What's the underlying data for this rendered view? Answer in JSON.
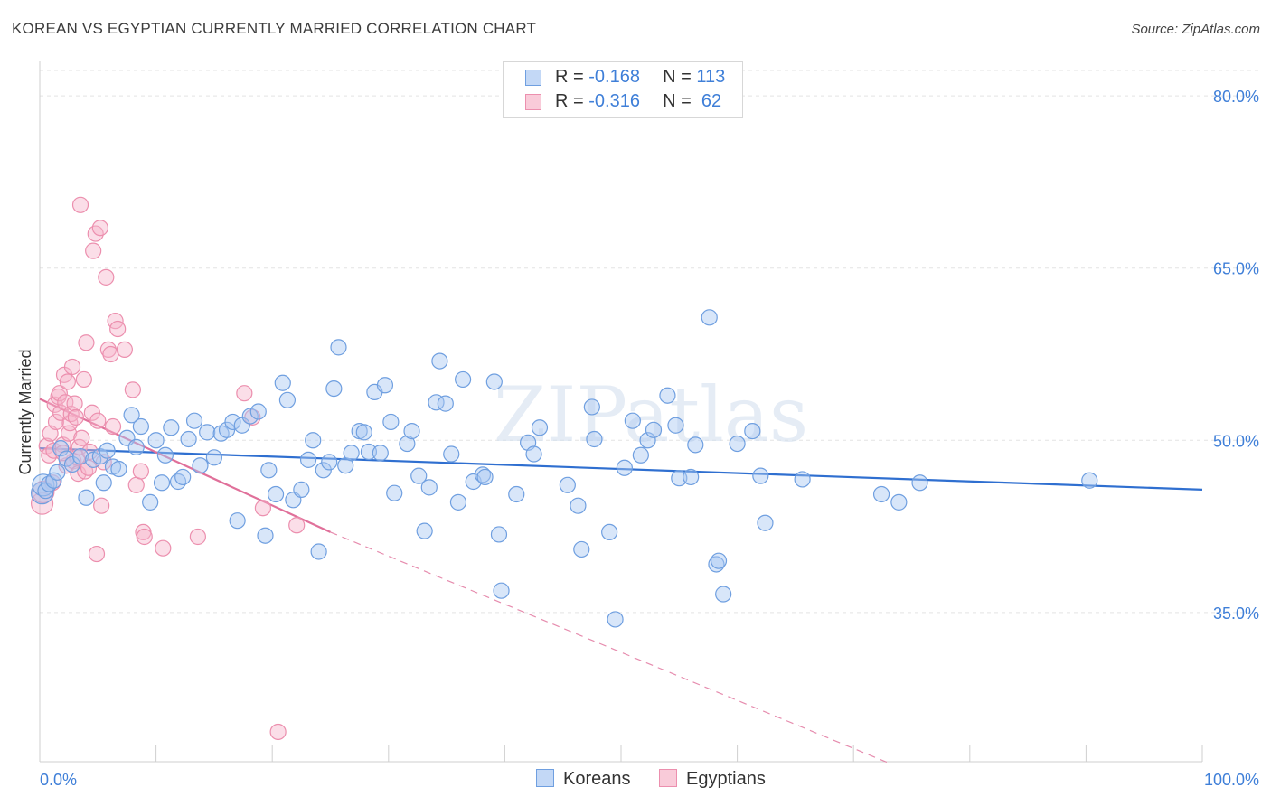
{
  "title": "KOREAN VS EGYPTIAN CURRENTLY MARRIED CORRELATION CHART",
  "source": "Source: ZipAtlas.com",
  "watermark": "ZIPatlas",
  "legend": {
    "rows": [
      {
        "label": "R = ",
        "r": "-0.168",
        "n_label": "N = ",
        "n": "113"
      },
      {
        "label": "R = ",
        "r": "-0.316",
        "n_label": "N = ",
        "n": " 62"
      }
    ]
  },
  "bottom_legend": [
    {
      "name": "Koreans"
    },
    {
      "name": "Egyptians"
    }
  ],
  "colors": {
    "blue_fill": "#a9c7f2",
    "blue_stroke": "#6f9fe0",
    "blue_line": "#2f6fd0",
    "pink_fill": "#f6b6cb",
    "pink_stroke": "#ec8fae",
    "pink_line": "#e0709a",
    "axis_label": "#3f7fd8",
    "grid": "#e3e3e3"
  },
  "chart_data": {
    "type": "scatter",
    "title": "KOREAN VS EGYPTIAN CURRENTLY MARRIED CORRELATION CHART",
    "xlabel": "",
    "ylabel": "Currently Married",
    "xlim": [
      0,
      100
    ],
    "ylim": [
      22,
      83
    ],
    "x_tick_labels": [
      "0.0%",
      "100.0%"
    ],
    "y_ticks": [
      35,
      50,
      65,
      80
    ],
    "y_tick_labels": [
      "35.0%",
      "50.0%",
      "65.0%",
      "80.0%"
    ],
    "grid": true,
    "series": [
      {
        "name": "Koreans",
        "r": -0.168,
        "n": 113,
        "trend": {
          "x": [
            0,
            100
          ],
          "y": [
            49.3,
            45.7
          ]
        },
        "points": [
          [
            0.2,
            45.4
          ],
          [
            0.3,
            46.1
          ],
          [
            0.5,
            45.6
          ],
          [
            0.8,
            46.2
          ],
          [
            1.2,
            46.5
          ],
          [
            1.5,
            47.2
          ],
          [
            1.8,
            49.3
          ],
          [
            2.3,
            48.4
          ],
          [
            2.8,
            47.9
          ],
          [
            3.5,
            48.6
          ],
          [
            4.0,
            45.0
          ],
          [
            4.6,
            48.3
          ],
          [
            5.2,
            48.6
          ],
          [
            5.5,
            46.3
          ],
          [
            5.8,
            49.1
          ],
          [
            6.3,
            47.7
          ],
          [
            6.8,
            47.5
          ],
          [
            7.5,
            50.2
          ],
          [
            7.9,
            52.2
          ],
          [
            8.3,
            49.4
          ],
          [
            8.7,
            51.2
          ],
          [
            9.5,
            44.6
          ],
          [
            10.0,
            50.0
          ],
          [
            10.5,
            46.3
          ],
          [
            10.8,
            48.7
          ],
          [
            11.3,
            51.1
          ],
          [
            11.9,
            46.4
          ],
          [
            12.3,
            46.8
          ],
          [
            12.8,
            50.1
          ],
          [
            13.3,
            51.7
          ],
          [
            13.8,
            47.8
          ],
          [
            14.4,
            50.7
          ],
          [
            15.0,
            48.5
          ],
          [
            15.6,
            50.6
          ],
          [
            16.1,
            50.9
          ],
          [
            16.6,
            51.6
          ],
          [
            17.0,
            43.0
          ],
          [
            17.4,
            51.3
          ],
          [
            18.1,
            52.1
          ],
          [
            18.8,
            52.5
          ],
          [
            19.4,
            41.7
          ],
          [
            19.7,
            47.4
          ],
          [
            20.3,
            45.3
          ],
          [
            20.9,
            55.0
          ],
          [
            21.3,
            53.5
          ],
          [
            21.8,
            44.8
          ],
          [
            22.5,
            45.7
          ],
          [
            23.1,
            48.3
          ],
          [
            23.5,
            50.0
          ],
          [
            24.0,
            40.3
          ],
          [
            24.4,
            47.4
          ],
          [
            24.9,
            48.1
          ],
          [
            25.3,
            54.5
          ],
          [
            25.7,
            58.1
          ],
          [
            26.3,
            47.8
          ],
          [
            26.8,
            48.9
          ],
          [
            27.5,
            50.8
          ],
          [
            27.9,
            50.7
          ],
          [
            28.3,
            49.0
          ],
          [
            28.8,
            54.2
          ],
          [
            29.3,
            48.9
          ],
          [
            29.7,
            54.8
          ],
          [
            30.2,
            51.6
          ],
          [
            30.5,
            45.4
          ],
          [
            31.6,
            49.7
          ],
          [
            32.0,
            50.8
          ],
          [
            32.6,
            46.9
          ],
          [
            33.1,
            42.1
          ],
          [
            33.5,
            45.9
          ],
          [
            34.1,
            53.3
          ],
          [
            34.4,
            56.9
          ],
          [
            34.9,
            53.2
          ],
          [
            35.4,
            48.8
          ],
          [
            36.0,
            44.6
          ],
          [
            36.4,
            55.3
          ],
          [
            37.3,
            46.4
          ],
          [
            38.1,
            47.0
          ],
          [
            38.3,
            46.8
          ],
          [
            39.1,
            55.1
          ],
          [
            39.5,
            41.8
          ],
          [
            39.7,
            36.9
          ],
          [
            41.0,
            45.3
          ],
          [
            42.0,
            49.8
          ],
          [
            42.5,
            48.8
          ],
          [
            43.0,
            51.1
          ],
          [
            45.4,
            46.1
          ],
          [
            46.3,
            44.3
          ],
          [
            46.6,
            40.5
          ],
          [
            47.5,
            52.9
          ],
          [
            47.7,
            50.1
          ],
          [
            49.0,
            42.0
          ],
          [
            49.5,
            34.4
          ],
          [
            50.3,
            47.6
          ],
          [
            51.0,
            51.7
          ],
          [
            51.7,
            48.7
          ],
          [
            52.3,
            50.0
          ],
          [
            52.8,
            50.9
          ],
          [
            54.0,
            53.9
          ],
          [
            54.7,
            51.3
          ],
          [
            55.0,
            46.7
          ],
          [
            56.0,
            46.8
          ],
          [
            56.4,
            49.6
          ],
          [
            57.6,
            60.7
          ],
          [
            58.2,
            39.2
          ],
          [
            58.4,
            39.5
          ],
          [
            58.8,
            36.6
          ],
          [
            60.0,
            49.7
          ],
          [
            61.3,
            50.8
          ],
          [
            62.0,
            46.9
          ],
          [
            62.4,
            42.8
          ],
          [
            65.6,
            46.6
          ],
          [
            72.4,
            45.3
          ],
          [
            73.9,
            44.6
          ],
          [
            75.7,
            46.3
          ],
          [
            90.3,
            46.5
          ]
        ]
      },
      {
        "name": "Egyptians",
        "r": -0.316,
        "n": 62,
        "trend": {
          "x": [
            0,
            25
          ],
          "y": [
            53.6,
            42.0
          ]
        },
        "trend_extension": {
          "x": [
            25,
            73
          ],
          "y": [
            42.0,
            21.9
          ]
        },
        "points": [
          [
            0.2,
            44.5
          ],
          [
            0.3,
            45.5
          ],
          [
            0.6,
            49.5
          ],
          [
            0.8,
            48.7
          ],
          [
            0.9,
            50.6
          ],
          [
            1.1,
            46.3
          ],
          [
            1.2,
            49.1
          ],
          [
            1.3,
            53.1
          ],
          [
            1.4,
            51.6
          ],
          [
            1.6,
            53.8
          ],
          [
            1.7,
            54.1
          ],
          [
            1.8,
            52.4
          ],
          [
            2.0,
            49.6
          ],
          [
            2.1,
            55.7
          ],
          [
            2.2,
            53.3
          ],
          [
            2.3,
            47.8
          ],
          [
            2.4,
            55.1
          ],
          [
            2.5,
            50.6
          ],
          [
            2.6,
            51.5
          ],
          [
            2.7,
            52.3
          ],
          [
            2.8,
            56.4
          ],
          [
            2.9,
            48.2
          ],
          [
            3.0,
            53.2
          ],
          [
            3.1,
            52.0
          ],
          [
            3.2,
            48.5
          ],
          [
            3.3,
            47.1
          ],
          [
            3.4,
            49.4
          ],
          [
            3.5,
            70.5
          ],
          [
            3.6,
            50.2
          ],
          [
            3.8,
            55.3
          ],
          [
            3.9,
            47.3
          ],
          [
            4.0,
            58.5
          ],
          [
            4.3,
            49.0
          ],
          [
            4.5,
            52.4
          ],
          [
            4.6,
            66.5
          ],
          [
            4.8,
            68.0
          ],
          [
            4.9,
            40.1
          ],
          [
            5.0,
            51.7
          ],
          [
            5.2,
            68.5
          ],
          [
            5.3,
            44.3
          ],
          [
            5.5,
            48.1
          ],
          [
            5.7,
            64.2
          ],
          [
            5.9,
            57.9
          ],
          [
            6.1,
            57.5
          ],
          [
            6.3,
            51.2
          ],
          [
            6.5,
            60.4
          ],
          [
            6.7,
            59.7
          ],
          [
            7.3,
            57.9
          ],
          [
            8.0,
            54.4
          ],
          [
            8.3,
            46.1
          ],
          [
            8.7,
            47.3
          ],
          [
            8.9,
            42.0
          ],
          [
            9.0,
            41.6
          ],
          [
            10.6,
            40.6
          ],
          [
            13.6,
            41.6
          ],
          [
            17.6,
            54.1
          ],
          [
            18.3,
            52.0
          ],
          [
            19.2,
            44.1
          ],
          [
            22.1,
            42.6
          ],
          [
            20.5,
            24.6
          ],
          [
            4.2,
            47.6
          ],
          [
            2.0,
            48.9
          ]
        ]
      }
    ]
  }
}
